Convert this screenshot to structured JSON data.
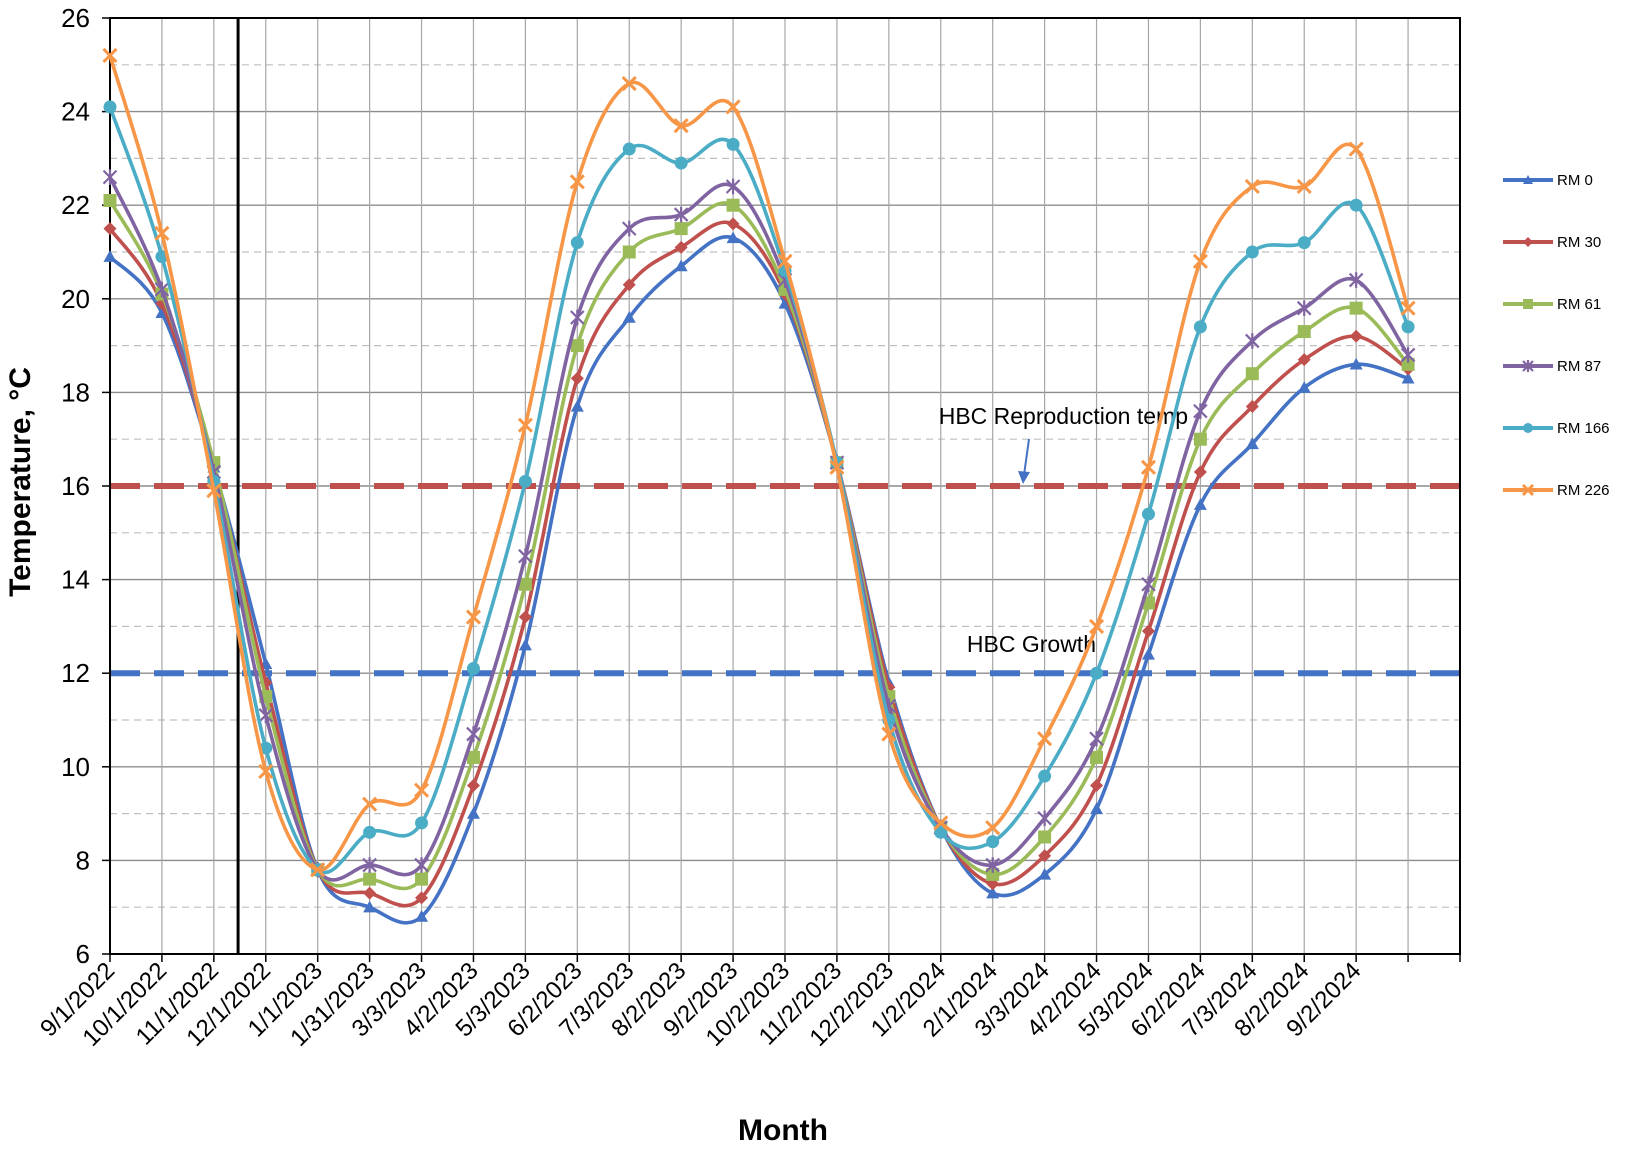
{
  "chart_data": {
    "type": "line",
    "title": "",
    "xlabel": "Month",
    "ylabel": "Temperature, °C",
    "ylim": [
      6,
      26
    ],
    "yticks": [
      "6",
      "8",
      "10",
      "12",
      "14",
      "16",
      "18",
      "20",
      "22",
      "24",
      "26"
    ],
    "grid": true,
    "legend_position": "right",
    "categories": [
      "9/1/2022",
      "10/1/2022",
      "11/1/2022",
      "12/1/2022",
      "1/1/2023",
      "1/31/2023",
      "3/3/2023",
      "4/2/2023",
      "5/3/2023",
      "6/2/2023",
      "7/3/2023",
      "8/2/2023",
      "9/2/2023",
      "10/2/2023",
      "11/2/2023",
      "12/2/2023",
      "1/2/2024",
      "2/1/2024",
      "3/3/2024",
      "4/2/2024",
      "5/3/2024",
      "6/2/2024",
      "7/3/2024",
      "8/2/2024",
      "9/2/2024",
      ""
    ],
    "series": [
      {
        "name": "RM 0",
        "color": "#4472c4",
        "marker": "triangle",
        "values": [
          20.9,
          19.7,
          16.4,
          12.2,
          7.8,
          7.0,
          6.8,
          9.0,
          12.6,
          17.7,
          19.6,
          20.7,
          21.3,
          19.9,
          16.5,
          11.8,
          8.7,
          7.3,
          7.7,
          9.1,
          12.4,
          15.6,
          16.9,
          18.1,
          18.6,
          18.3
        ]
      },
      {
        "name": "RM 30",
        "color": "#c0504d",
        "marker": "diamond",
        "values": [
          21.5,
          19.9,
          16.4,
          11.8,
          7.8,
          7.3,
          7.2,
          9.6,
          13.2,
          18.3,
          20.3,
          21.1,
          21.6,
          20.1,
          16.5,
          11.7,
          8.7,
          7.5,
          8.1,
          9.6,
          12.9,
          16.3,
          17.7,
          18.7,
          19.2,
          18.5
        ]
      },
      {
        "name": "RM 61",
        "color": "#9bbb59",
        "marker": "square",
        "values": [
          22.1,
          20.1,
          16.5,
          11.5,
          7.8,
          7.6,
          7.6,
          10.2,
          13.9,
          19.0,
          21.0,
          21.5,
          22.0,
          20.2,
          16.5,
          11.5,
          8.7,
          7.7,
          8.5,
          10.2,
          13.5,
          17.0,
          18.4,
          19.3,
          19.8,
          18.6
        ]
      },
      {
        "name": "RM 87",
        "color": "#8064a2",
        "marker": "star",
        "values": [
          22.6,
          20.2,
          16.3,
          11.1,
          7.8,
          7.9,
          7.9,
          10.7,
          14.5,
          19.6,
          21.5,
          21.8,
          22.4,
          20.4,
          16.5,
          11.3,
          8.7,
          7.9,
          8.9,
          10.6,
          13.9,
          17.6,
          19.1,
          19.8,
          20.4,
          18.8
        ]
      },
      {
        "name": "RM 166",
        "color": "#4bacc6",
        "marker": "circle",
        "values": [
          24.1,
          20.9,
          16.1,
          10.4,
          7.8,
          8.6,
          8.8,
          12.1,
          16.1,
          21.2,
          23.2,
          22.9,
          23.3,
          20.6,
          16.5,
          11.0,
          8.6,
          8.4,
          9.8,
          12.0,
          15.4,
          19.4,
          21.0,
          21.2,
          22.0,
          19.4
        ]
      },
      {
        "name": "RM 226",
        "color": "#f79646",
        "marker": "x",
        "values": [
          25.2,
          21.4,
          15.9,
          9.9,
          7.8,
          9.2,
          9.5,
          13.2,
          17.3,
          22.5,
          24.6,
          23.7,
          24.1,
          20.8,
          16.4,
          10.7,
          8.8,
          8.7,
          10.6,
          13.0,
          16.4,
          20.8,
          22.4,
          22.4,
          23.2,
          19.8
        ]
      }
    ],
    "reference_lines": [
      {
        "value": 16,
        "color": "#c0504d",
        "label": "HBC Reproduction temp"
      },
      {
        "value": 12,
        "color": "#4472c4",
        "label": "HBC Growth"
      }
    ],
    "vertical_marker": {
      "x": "11/15/2022",
      "color": "#000000"
    }
  }
}
